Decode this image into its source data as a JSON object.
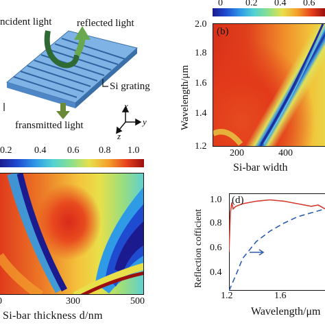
{
  "panel_a": {
    "incident_label": "ncident light",
    "reflected_label": "reflected light",
    "grating_label": "Si grating",
    "transmitted_label": "fransmitted light",
    "axis_x": "x",
    "axis_y": "y",
    "axis_z": "z"
  },
  "panel_b": {
    "tag": "(b)",
    "ylabel": "Wavelength/μm",
    "xlabel": "Si-bar width",
    "colorbar_ticks": [
      "0",
      "0.2",
      "0.4",
      "0.6"
    ],
    "y_ticks": [
      "2.0",
      "1.8",
      "1.6",
      "1.4",
      "1.2"
    ],
    "x_ticks": [
      "200",
      "400"
    ]
  },
  "panel_c": {
    "colorbar_ticks": [
      "0.2",
      "0.4",
      "0.6",
      "0.8",
      "1.0"
    ],
    "xlabel": "Si-bar thickness d/nm",
    "x_ticks": [
      "0",
      "300",
      "500"
    ]
  },
  "panel_d": {
    "tag": "(d)",
    "ylabel": "Reflection cofficient",
    "xlabel": "Wavelength/μm",
    "y_ticks": [
      "1.0",
      "0.8",
      "0.6",
      "0.4"
    ],
    "x_ticks": [
      "1.2",
      "1.6"
    ],
    "colors": {
      "solid": "#d23a2e",
      "dashed": "#2a5db0"
    }
  },
  "chart_data": {
    "type": "line",
    "xlabel": "Wavelength/μm",
    "ylabel": "Reflection cofficient",
    "xlim": [
      1.2,
      1.9
    ],
    "ylim": [
      0.3,
      1.05
    ],
    "series": [
      {
        "style": "solid",
        "x": [
          1.2,
          1.21,
          1.22,
          1.23,
          1.25,
          1.3,
          1.4,
          1.5,
          1.6,
          1.7,
          1.8,
          1.85,
          1.9
        ],
        "values": [
          0.6,
          0.9,
          0.98,
          0.93,
          0.95,
          0.97,
          0.99,
          1.0,
          0.99,
          0.97,
          0.95,
          0.96,
          0.93
        ]
      },
      {
        "style": "dashed",
        "x": [
          1.2,
          1.25,
          1.3,
          1.4,
          1.5,
          1.6,
          1.7,
          1.8,
          1.9
        ],
        "values": [
          0.3,
          0.42,
          0.55,
          0.68,
          0.76,
          0.82,
          0.87,
          0.9,
          0.93
        ]
      }
    ]
  }
}
